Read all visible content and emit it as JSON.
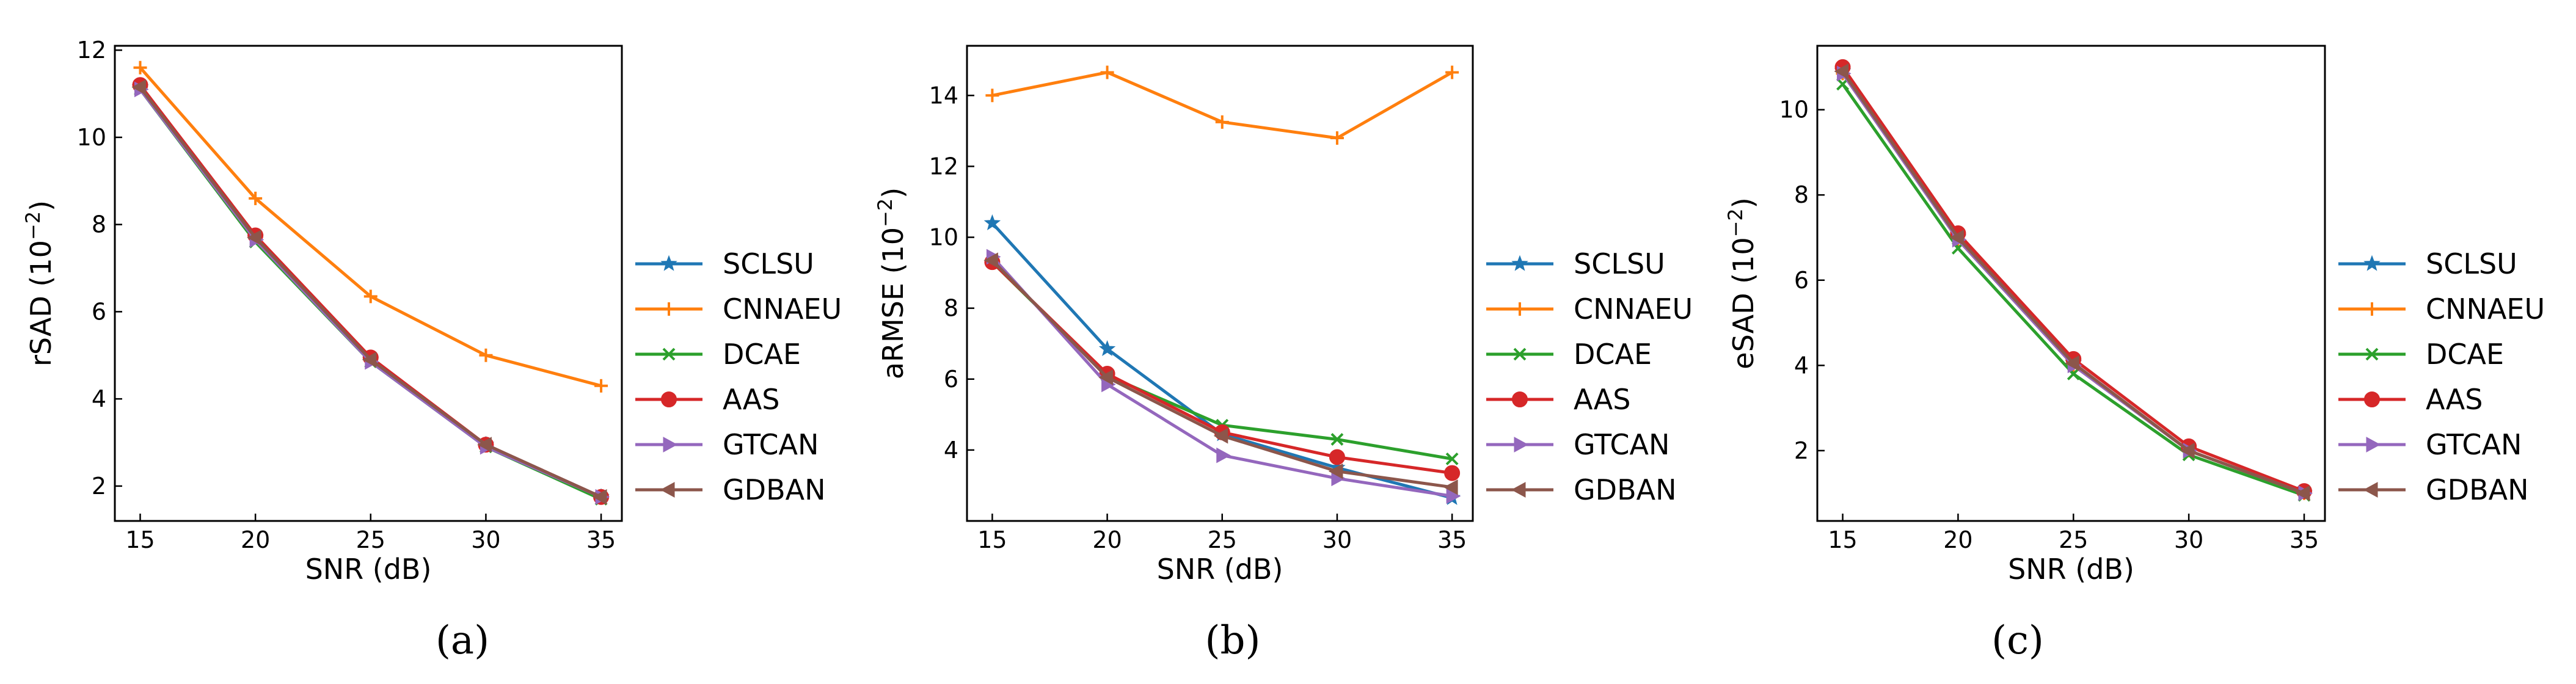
{
  "chart_data": [
    {
      "type": "line",
      "caption": "(a)",
      "xlabel": "SNR (dB)",
      "ylabel": "rSAD (10−2)",
      "ylabel_main": "rSAD (10",
      "ylabel_exp": "−2",
      "ylabel_close": ")",
      "x": [
        15,
        20,
        25,
        30,
        35
      ],
      "xticks": [
        15,
        20,
        25,
        30,
        35
      ],
      "yticks": [
        2,
        4,
        6,
        8,
        10,
        12
      ],
      "xlim": [
        13.9,
        35.9
      ],
      "ylim": [
        1.2,
        12.1
      ],
      "series": [
        {
          "name": "SCLSU",
          "values": [
            11.15,
            7.7,
            4.9,
            2.95,
            1.75
          ]
        },
        {
          "name": "CNNAEU",
          "values": [
            11.6,
            8.6,
            6.35,
            5.0,
            4.3
          ]
        },
        {
          "name": "DCAE",
          "values": [
            11.1,
            7.6,
            4.85,
            2.9,
            1.7
          ]
        },
        {
          "name": "AAS",
          "values": [
            11.2,
            7.75,
            4.95,
            2.95,
            1.75
          ]
        },
        {
          "name": "GTCAN",
          "values": [
            11.1,
            7.65,
            4.85,
            2.9,
            1.75
          ]
        },
        {
          "name": "GDBAN",
          "values": [
            11.15,
            7.7,
            4.9,
            2.95,
            1.75
          ]
        }
      ]
    },
    {
      "type": "line",
      "caption": "(b)",
      "xlabel": "SNR (dB)",
      "ylabel": "aRMSE (10−2)",
      "ylabel_main": "aRMSE (10",
      "ylabel_exp": "−2",
      "ylabel_close": ")",
      "x": [
        15,
        20,
        25,
        30,
        35
      ],
      "xticks": [
        15,
        20,
        25,
        30,
        35
      ],
      "yticks": [
        4,
        6,
        8,
        10,
        12,
        14
      ],
      "xlim": [
        13.9,
        35.9
      ],
      "ylim": [
        2.0,
        15.4
      ],
      "series": [
        {
          "name": "SCLSU",
          "values": [
            10.4,
            6.85,
            4.45,
            3.5,
            2.65
          ]
        },
        {
          "name": "CNNAEU",
          "values": [
            14.0,
            14.65,
            13.25,
            12.8,
            14.65
          ]
        },
        {
          "name": "DCAE",
          "values": [
            9.3,
            6.1,
            4.7,
            4.3,
            3.75
          ]
        },
        {
          "name": "AAS",
          "values": [
            9.3,
            6.15,
            4.5,
            3.8,
            3.35
          ]
        },
        {
          "name": "GTCAN",
          "values": [
            9.45,
            5.85,
            3.85,
            3.2,
            2.7
          ]
        },
        {
          "name": "GDBAN",
          "values": [
            9.35,
            6.05,
            4.4,
            3.4,
            2.95
          ]
        }
      ]
    },
    {
      "type": "line",
      "caption": "(c)",
      "xlabel": "SNR (dB)",
      "ylabel": "eSAD (10−2)",
      "ylabel_main": "eSAD (10",
      "ylabel_exp": "−2",
      "ylabel_close": ")",
      "x": [
        15,
        20,
        25,
        30,
        35
      ],
      "xticks": [
        15,
        20,
        25,
        30,
        35
      ],
      "yticks": [
        2,
        4,
        6,
        8,
        10
      ],
      "xlim": [
        13.9,
        35.9
      ],
      "ylim": [
        0.35,
        11.5
      ],
      "series": [
        {
          "name": "SCLSU",
          "values": [
            10.9,
            7.0,
            4.05,
            2.0,
            1.0
          ]
        },
        {
          "name": "CNNAEU",
          "values": [
            10.85,
            6.95,
            4.0,
            2.0,
            1.0
          ]
        },
        {
          "name": "DCAE",
          "values": [
            10.6,
            6.75,
            3.8,
            1.9,
            0.95
          ]
        },
        {
          "name": "AAS",
          "values": [
            11.0,
            7.1,
            4.15,
            2.1,
            1.05
          ]
        },
        {
          "name": "GTCAN",
          "values": [
            10.85,
            6.95,
            4.0,
            2.0,
            1.0
          ]
        },
        {
          "name": "GDBAN",
          "values": [
            10.9,
            7.0,
            4.05,
            2.0,
            1.0
          ]
        }
      ]
    }
  ],
  "series_style": [
    {
      "name": "SCLSU",
      "color": "#1f77b4",
      "marker": "star"
    },
    {
      "name": "CNNAEU",
      "color": "#ff7f0e",
      "marker": "plus"
    },
    {
      "name": "DCAE",
      "color": "#2ca02c",
      "marker": "x"
    },
    {
      "name": "AAS",
      "color": "#d62728",
      "marker": "circle"
    },
    {
      "name": "GTCAN",
      "color": "#9467bd",
      "marker": "triangle-right"
    },
    {
      "name": "GDBAN",
      "color": "#8c564b",
      "marker": "triangle-left"
    }
  ]
}
